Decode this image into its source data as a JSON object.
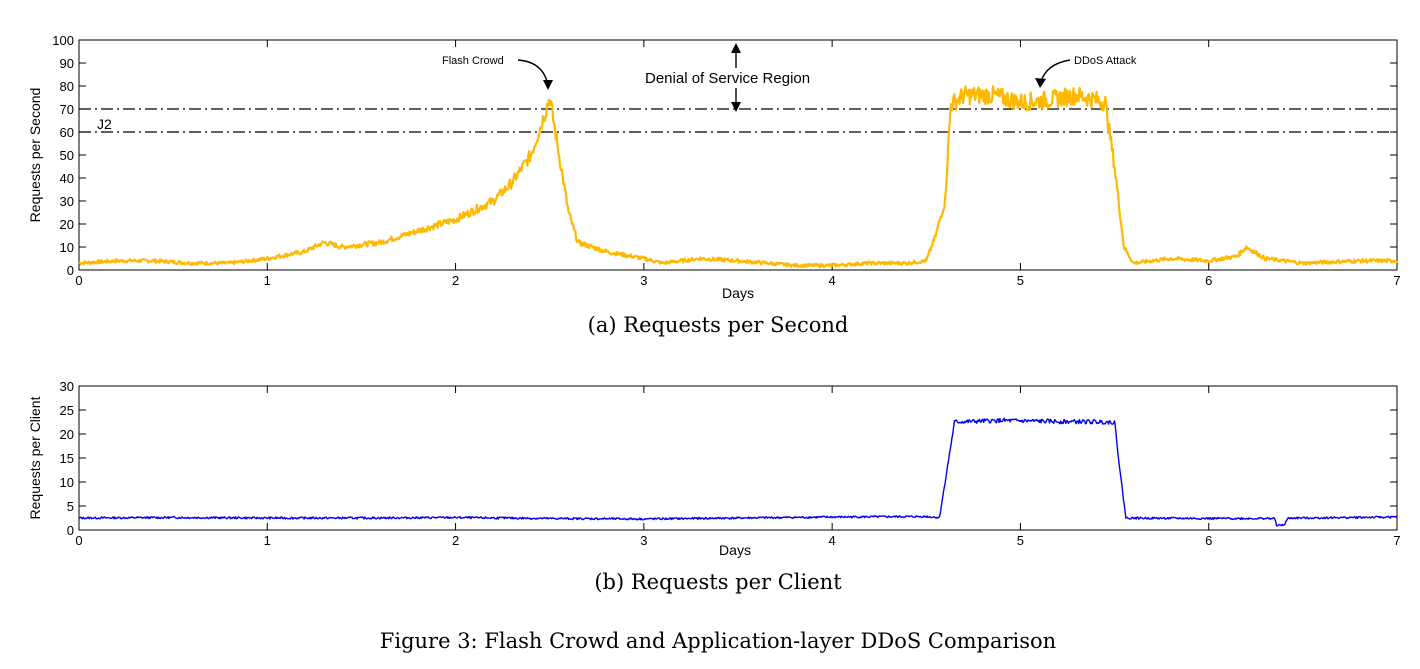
{
  "figure_caption": "Figure 3: Flash Crowd and Application-layer DDoS Comparison",
  "chart_data": [
    {
      "type": "line",
      "caption": "(a) Requests per Second",
      "xlabel": "Days",
      "ylabel": "Requests per Second",
      "xlim": [
        0,
        7
      ],
      "ylim": [
        0,
        100
      ],
      "xticks": [
        0,
        1,
        2,
        3,
        4,
        5,
        6,
        7
      ],
      "yticks": [
        0,
        10,
        20,
        30,
        40,
        50,
        60,
        70,
        80,
        90,
        100
      ],
      "grid": false,
      "series": [
        {
          "color": "#FFB800",
          "x": [
            0,
            0.2,
            0.4,
            0.6,
            0.8,
            1.0,
            1.2,
            1.3,
            1.4,
            1.6,
            1.8,
            2.0,
            2.2,
            2.3,
            2.4,
            2.45,
            2.5,
            2.55,
            2.6,
            2.65,
            2.8,
            3.0,
            3.1,
            3.3,
            3.5,
            3.8,
            4.0,
            4.2,
            4.4,
            4.5,
            4.55,
            4.6,
            4.63,
            4.7,
            4.85,
            5.0,
            5.15,
            5.3,
            5.45,
            5.5,
            5.55,
            5.6,
            5.8,
            6.0,
            6.15,
            6.2,
            6.3,
            6.5,
            6.8,
            7.0
          ],
          "y": [
            3,
            4,
            4,
            3,
            3,
            5,
            8,
            12,
            10,
            12,
            17,
            22,
            30,
            38,
            50,
            62,
            75,
            50,
            25,
            12,
            8,
            5,
            3,
            5,
            4,
            2,
            2,
            3,
            3,
            4,
            15,
            30,
            72,
            76,
            76,
            73,
            74,
            76,
            73,
            45,
            10,
            3,
            5,
            4,
            6,
            10,
            5,
            3,
            4,
            4
          ]
        }
      ],
      "reference_lines": [
        {
          "y": 70
        },
        {
          "y": 60,
          "label": "J2"
        }
      ],
      "annotations": [
        {
          "text": "Flash Crowd",
          "x": 2.5,
          "y": 75
        },
        {
          "text": "Denial of Service Region"
        },
        {
          "text": "DDoS Attack",
          "x": 5.1,
          "y": 79
        }
      ]
    },
    {
      "type": "line",
      "caption": "(b) Requests per Client",
      "xlabel": "Days",
      "ylabel": "Requests per Client",
      "xlim": [
        0,
        7
      ],
      "ylim": [
        0,
        30
      ],
      "xticks": [
        0,
        1,
        2,
        3,
        4,
        5,
        6,
        7
      ],
      "yticks": [
        0,
        5,
        10,
        15,
        20,
        25,
        30
      ],
      "grid": false,
      "series": [
        {
          "color": "#0000EE",
          "x": [
            0,
            0.5,
            1.0,
            1.5,
            2.0,
            2.5,
            3.0,
            3.5,
            4.0,
            4.5,
            4.57,
            4.6,
            4.65,
            4.9,
            5.2,
            5.5,
            5.53,
            5.56,
            6.0,
            6.35,
            6.36,
            6.4,
            6.42,
            6.45,
            6.5,
            7.0
          ],
          "y": [
            2.5,
            2.6,
            2.5,
            2.5,
            2.6,
            2.4,
            2.3,
            2.5,
            2.7,
            2.8,
            2.6,
            10,
            22.5,
            22.8,
            22.6,
            22.5,
            12,
            2.5,
            2.4,
            2.4,
            1.0,
            1.0,
            2.4,
            2.5,
            2.5,
            2.7
          ]
        }
      ]
    }
  ]
}
